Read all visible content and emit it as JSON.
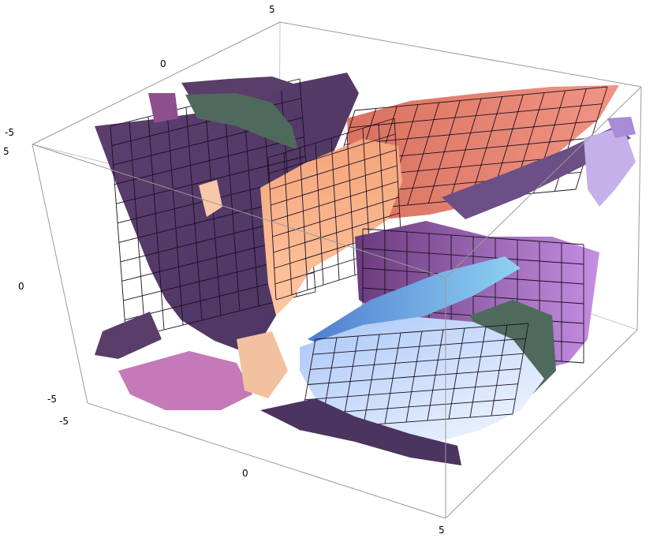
{
  "chart_data": {
    "type": "surface3d",
    "title": "",
    "axes": {
      "x": {
        "range": [
          -5,
          5
        ],
        "ticks": [
          "-5",
          "0",
          "5"
        ]
      },
      "y": {
        "range": [
          -5,
          5
        ],
        "ticks": [
          "-5",
          "0",
          "5"
        ]
      },
      "z": {
        "range": [
          -5,
          5
        ],
        "ticks": [
          "-5",
          "0",
          "5"
        ]
      }
    },
    "boxed": true,
    "mesh": true,
    "colors": {
      "deep_purple": "#553a66",
      "mid_purple": "#6b4a80",
      "salmon": "#e67d78",
      "orange": "#f0a070",
      "light_blue": "#cfe0ff",
      "sky_blue": "#7fb0ee",
      "dark_green": "#4e6a5c",
      "pink": "#d486c6",
      "lavender": "#b79ae0"
    }
  }
}
